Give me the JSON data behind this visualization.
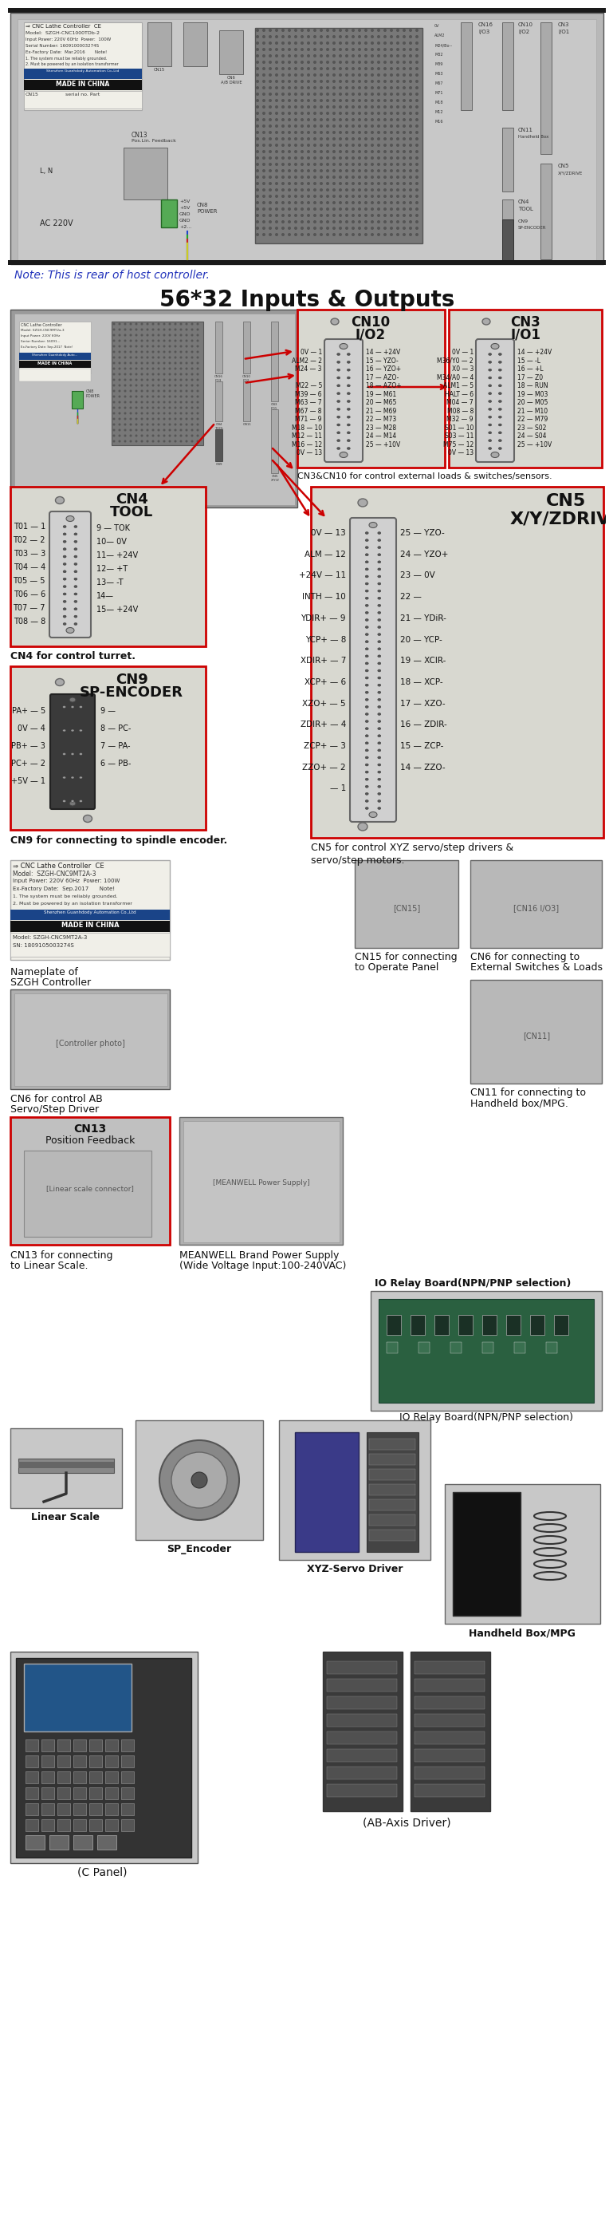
{
  "bg_color": "#ffffff",
  "note_text": "Note: This is rear of host controller.",
  "note_color": "#2233bb",
  "heading1": "56*32 Inputs & Outputs",
  "red": "#cc0000",
  "photo_bg": "#b0b0b0",
  "connector_bg": "#c8c8c8",
  "dark_connector": "#404040",
  "light_bg": "#e8e8e8",
  "cn4_title1": "CN4",
  "cn4_title2": "TOOL",
  "cn4_left": [
    "T01 — 1",
    "T02 — 2",
    "T03 — 3",
    "T04 — 4",
    "T05 — 5",
    "T06 — 6",
    "T07 — 7",
    "T08 — 8"
  ],
  "cn4_right": [
    "9 — TOK",
    "10— 0V",
    "11— +24V",
    "12— +T",
    "13— -T",
    "14—",
    "15— +24V"
  ],
  "cn9_title1": "CN9",
  "cn9_title2": "SP-ENCODER",
  "cn9_left": [
    "PA+ — 5",
    "0V — 4",
    "PB+ — 3",
    "PC+ — 2",
    "+5V — 1"
  ],
  "cn9_right": [
    "9 —",
    "8 — PC-",
    "7 — PA-",
    "6 — PB-"
  ],
  "cn5_title1": "CN5",
  "cn5_title2": "X/Y/ZDRIVE",
  "cn5_left": [
    "0V — 13",
    "ALM — 12",
    "+24V — 11",
    "INTH — 10",
    "YDIR+ — 9",
    "YCP+ — 8",
    "XDIR+ — 7",
    "XCP+ — 6",
    "XZO+ — 5",
    "ZDIR+ — 4",
    "ZCP+ — 3",
    "ZZO+ — 2",
    "— 1"
  ],
  "cn5_right": [
    "25 — YZO-",
    "24 — YZO+",
    "23 — 0V",
    "22 —",
    "21 — YDiR-",
    "20 — YCP-",
    "19 — XCIR-",
    "18 — XCP-",
    "17 — XZO-",
    "16 — ZDIR-",
    "15 — ZCP-",
    "14 — ZZO-"
  ],
  "cn10_title1": "CN10",
  "cn10_title2": "I/O2",
  "cn10_left": [
    "0V — 1",
    "ALM2 — 2",
    "M24 — 3",
    "",
    "M22 — 5",
    "M39 — 6",
    "M63 — 7",
    "M67 — 8",
    "M71 — 9",
    "M18 — 10",
    "M12 — 11",
    "M16 — 12",
    "0V — 13"
  ],
  "cn10_right": [
    "14 — +24V",
    "15 — YZO-",
    "16 — YZO+",
    "17 — AZO-",
    "18 — AZO+",
    "19 — M61",
    "20 — M65",
    "21 — M69",
    "22 — M73",
    "23 — M28",
    "24 — M14",
    "25 — +10V"
  ],
  "cn3_title1": "CN3",
  "cn3_title2": "I/O1",
  "cn3_left": [
    "0V — 1",
    "M36/Y0 — 2",
    "X0 — 3",
    "M34/A0 — 4",
    "ALM1 — 5",
    "HALT — 6",
    "M04 — 7",
    "M08 — 8",
    "M32 — 9",
    "S01 — 10",
    "S03 — 11",
    "M75 — 12",
    "0V — 13"
  ],
  "cn3_right": [
    "14 — +24V",
    "15 — -L",
    "16 — +L",
    "17 — Z0",
    "18 — RUN",
    "19 — M03",
    "20 — M05",
    "21 — M10",
    "22 — M79",
    "23 — S02",
    "24 — S04",
    "25 — +10V"
  ]
}
